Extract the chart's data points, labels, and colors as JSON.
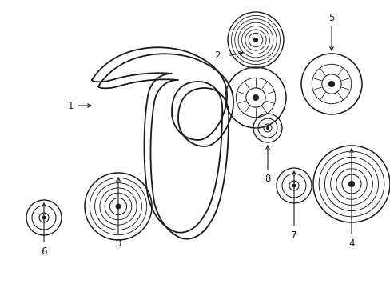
{
  "bg_color": "#ffffff",
  "line_color": "#1a1a1a",
  "fig_width": 4.89,
  "fig_height": 3.6,
  "dpi": 100,
  "belt_lw": 1.3,
  "pulley_lw": 1.1
}
